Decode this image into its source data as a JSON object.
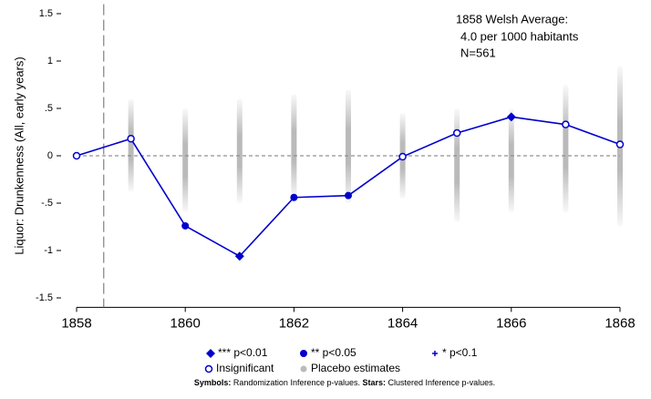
{
  "chart_data": {
    "type": "line",
    "ylabel": "Liquor: Drunkenness (All, early years)",
    "annotation": [
      "1858 Welsh Average:",
      "4.0 per 1000 habitants",
      "N=561"
    ],
    "x": [
      1858,
      1859,
      1860,
      1861,
      1862,
      1863,
      1864,
      1865,
      1866,
      1867,
      1868
    ],
    "series": [
      {
        "color": "#0000cc",
        "values": [
          0,
          0.18,
          -0.74,
          -1.06,
          -0.44,
          -0.42,
          -0.01,
          0.24,
          0.41,
          0.33,
          0.12
        ],
        "markers": [
          "open",
          "open",
          "circle",
          "diamond",
          "circle",
          "circle",
          "open",
          "open",
          "diamond",
          "open",
          "open"
        ]
      }
    ],
    "placebo": {
      "color": "#8c8c8c",
      "x": [
        1859,
        1860,
        1861,
        1862,
        1863,
        1864,
        1865,
        1866,
        1867,
        1868
      ],
      "low": [
        -0.38,
        -0.6,
        -0.5,
        -0.45,
        -0.5,
        -0.45,
        -0.7,
        -0.6,
        -0.6,
        -0.75
      ],
      "high": [
        0.6,
        0.5,
        0.6,
        0.65,
        0.7,
        0.45,
        0.5,
        0.5,
        0.75,
        0.95
      ]
    },
    "vline": 1858.5,
    "hline": 0,
    "xlim": [
      1858,
      1868
    ],
    "xticks": [
      1858,
      1860,
      1862,
      1864,
      1866,
      1868
    ],
    "ylim": [
      -1.6,
      1.6
    ],
    "yticks": [
      -1.5,
      -1,
      {
        "value": -0.5,
        "label": "-.5"
      },
      0,
      {
        "value": 0.5,
        "label": ".5"
      },
      1,
      1.5
    ],
    "legend": [
      {
        "symbol": "diamond",
        "label": "*** p<0.01"
      },
      {
        "symbol": "circle",
        "label": "** p<0.05"
      },
      {
        "symbol": "plus",
        "label": "* p<0.1"
      },
      {
        "symbol": "open",
        "label": "Insignificant"
      },
      {
        "symbol": "placebo",
        "label": "Placebo estimates"
      }
    ],
    "footnote": [
      {
        "text": "Symbols:",
        "bold": true
      },
      {
        "text": " Randomization Inference p-values. ",
        "bold": false
      },
      {
        "text": "Stars:",
        "bold": true
      },
      {
        "text": "  Clustered Inference p-values.",
        "bold": false
      }
    ]
  }
}
